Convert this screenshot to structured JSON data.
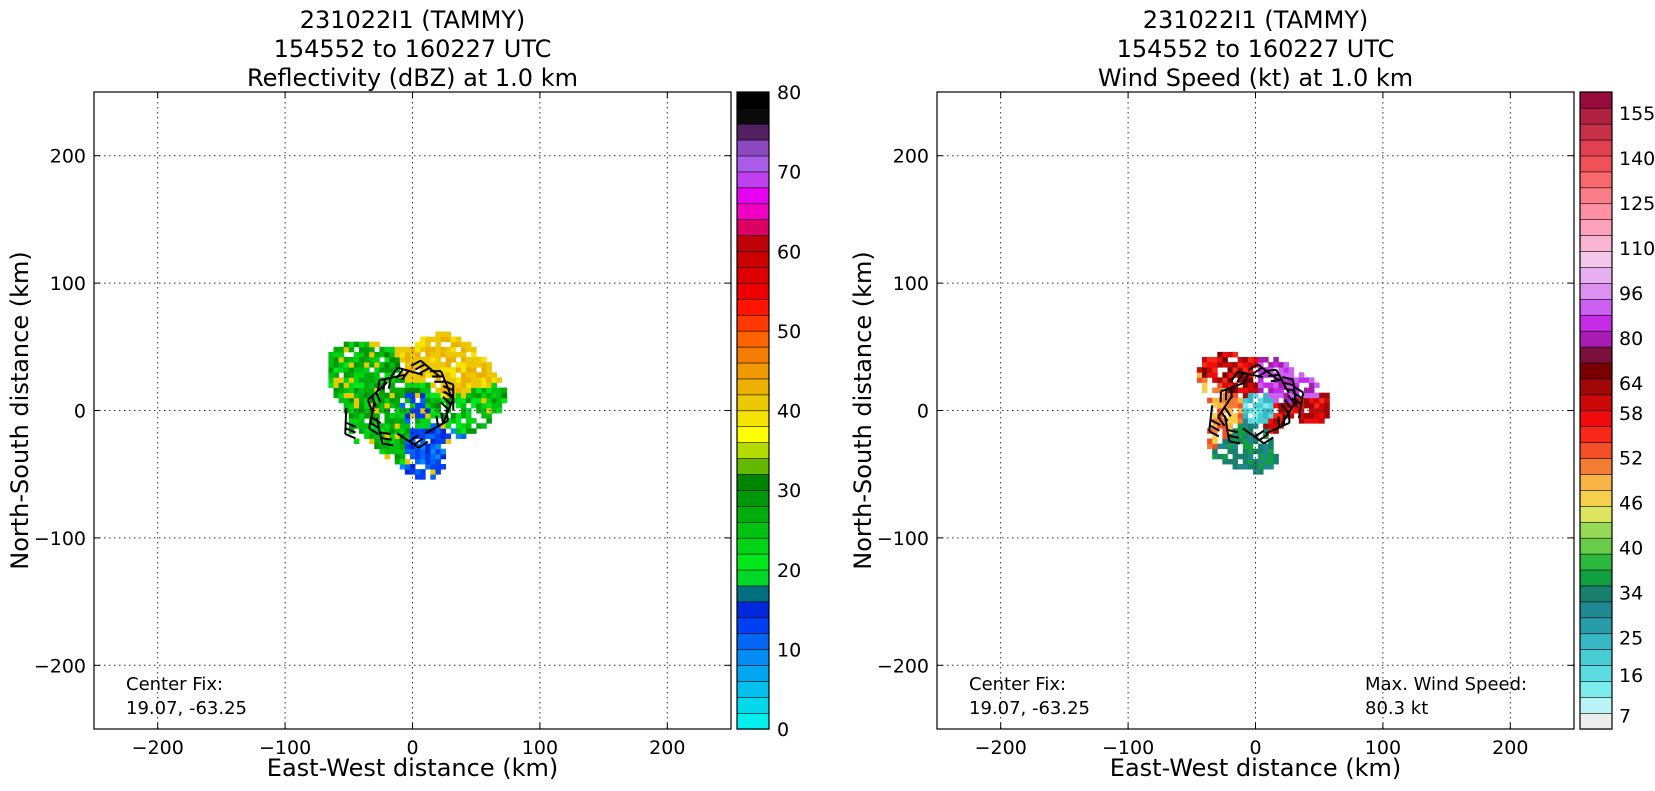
{
  "chart_data": [
    {
      "type": "heatmap",
      "title_lines": [
        "231022I1 (TAMMY)",
        "154552 to 160227 UTC",
        "Reflectivity (dBZ) at 1.0 km"
      ],
      "xlabel": "East-West distance (km)",
      "ylabel": "North-South distance (km)",
      "xlim": [
        -250,
        250
      ],
      "ylim": [
        -250,
        250
      ],
      "xticks": [
        -200,
        -100,
        0,
        100,
        200
      ],
      "yticks": [
        -200,
        -100,
        0,
        100,
        200
      ],
      "xtick_labels": [
        "−200",
        "−100",
        "0",
        "100",
        "200"
      ],
      "ytick_labels": [
        "−200",
        "−100",
        "0",
        "100",
        "200"
      ],
      "grid": true,
      "annotations": [
        {
          "lines": [
            "Center Fix:",
            "19.07, -63.25"
          ],
          "placement": "bottom-left"
        }
      ],
      "colorbar": {
        "range": [
          0,
          80
        ],
        "ticks": [
          0,
          10,
          20,
          30,
          40,
          50,
          60,
          70,
          80
        ],
        "colors": [
          "#00f0f0",
          "#00d8ec",
          "#00c0ee",
          "#00a6f0",
          "#008cf2",
          "#0066f4",
          "#0040f4",
          "#0028dc",
          "#007080",
          "#00d828",
          "#00e81c",
          "#00d414",
          "#00c010",
          "#00ac0c",
          "#009808",
          "#008404",
          "#64b800",
          "#b4dc00",
          "#ffff00",
          "#f4e400",
          "#ecc800",
          "#ecb000",
          "#f09800",
          "#f47c00",
          "#ff6400",
          "#ff3800",
          "#ff1400",
          "#ec0000",
          "#dc0000",
          "#cc0000",
          "#c00008",
          "#dc0064",
          "#f000c0",
          "#e800f0",
          "#c040f0",
          "#a85ce8",
          "#8c48c0",
          "#502060",
          "#0a0a0a",
          "#000000"
        ]
      },
      "field": {
        "shape": "annular-storm",
        "center": [
          0,
          0
        ],
        "inner_radius_km": 12,
        "outer_radius_km": 62,
        "eye_offset_km": [
          20,
          -8
        ],
        "value_samples_dBZ": [
          16,
          22,
          26,
          28,
          32,
          38,
          40,
          12,
          14
        ]
      },
      "barbs_present": true
    },
    {
      "type": "heatmap",
      "title_lines": [
        "231022I1 (TAMMY)",
        "154552 to 160227 UTC",
        "Wind Speed (kt) at 1.0 km"
      ],
      "xlabel": "East-West distance (km)",
      "ylabel": "North-South distance (km)",
      "xlim": [
        -250,
        250
      ],
      "ylim": [
        -250,
        250
      ],
      "xticks": [
        -200,
        -100,
        0,
        100,
        200
      ],
      "yticks": [
        -200,
        -100,
        0,
        100,
        200
      ],
      "xtick_labels": [
        "−200",
        "−100",
        "0",
        "100",
        "200"
      ],
      "ytick_labels": [
        "−200",
        "−100",
        "0",
        "100",
        "200"
      ],
      "grid": true,
      "annotations": [
        {
          "lines": [
            "Center Fix:",
            "19.07, -63.25"
          ],
          "placement": "bottom-left"
        },
        {
          "lines": [
            "Max. Wind Speed:",
            "80.3 kt"
          ],
          "placement": "bottom-right"
        }
      ],
      "colorbar": {
        "ticks_labels": [
          "155",
          "140",
          "125",
          "110",
          "96",
          "80",
          "64",
          "58",
          "52",
          "46",
          "40",
          "34",
          "25",
          "16",
          "7"
        ],
        "colors_bottom_to_top": [
          "#ececec",
          "#b8f4f4",
          "#7cecec",
          "#5cdce0",
          "#48ccd4",
          "#38b8c4",
          "#289ca8",
          "#208890",
          "#18806c",
          "#10a040",
          "#2cb83c",
          "#68cc48",
          "#98d858",
          "#dce460",
          "#f4d04c",
          "#f8b444",
          "#f47c34",
          "#f45028",
          "#f82818",
          "#f00c0c",
          "#cc0808",
          "#a00808",
          "#780000",
          "#7c103c",
          "#a81cb4",
          "#c42ce8",
          "#cc60f0",
          "#dc90f0",
          "#e8b0f0",
          "#f4c8ec",
          "#f8b4d0",
          "#fca0bc",
          "#fc90a4",
          "#fc7c88",
          "#f8686c",
          "#f05058",
          "#e04050",
          "#c83048",
          "#b02040",
          "#980c3c"
        ]
      },
      "field": {
        "shape": "annular-storm",
        "center": [
          0,
          0
        ],
        "inner_radius_km": 14,
        "outer_radius_km": 46,
        "value_samples_kt": [
          80,
          70,
          62,
          50,
          46,
          40,
          30,
          20
        ]
      },
      "barbs_present": true
    }
  ]
}
